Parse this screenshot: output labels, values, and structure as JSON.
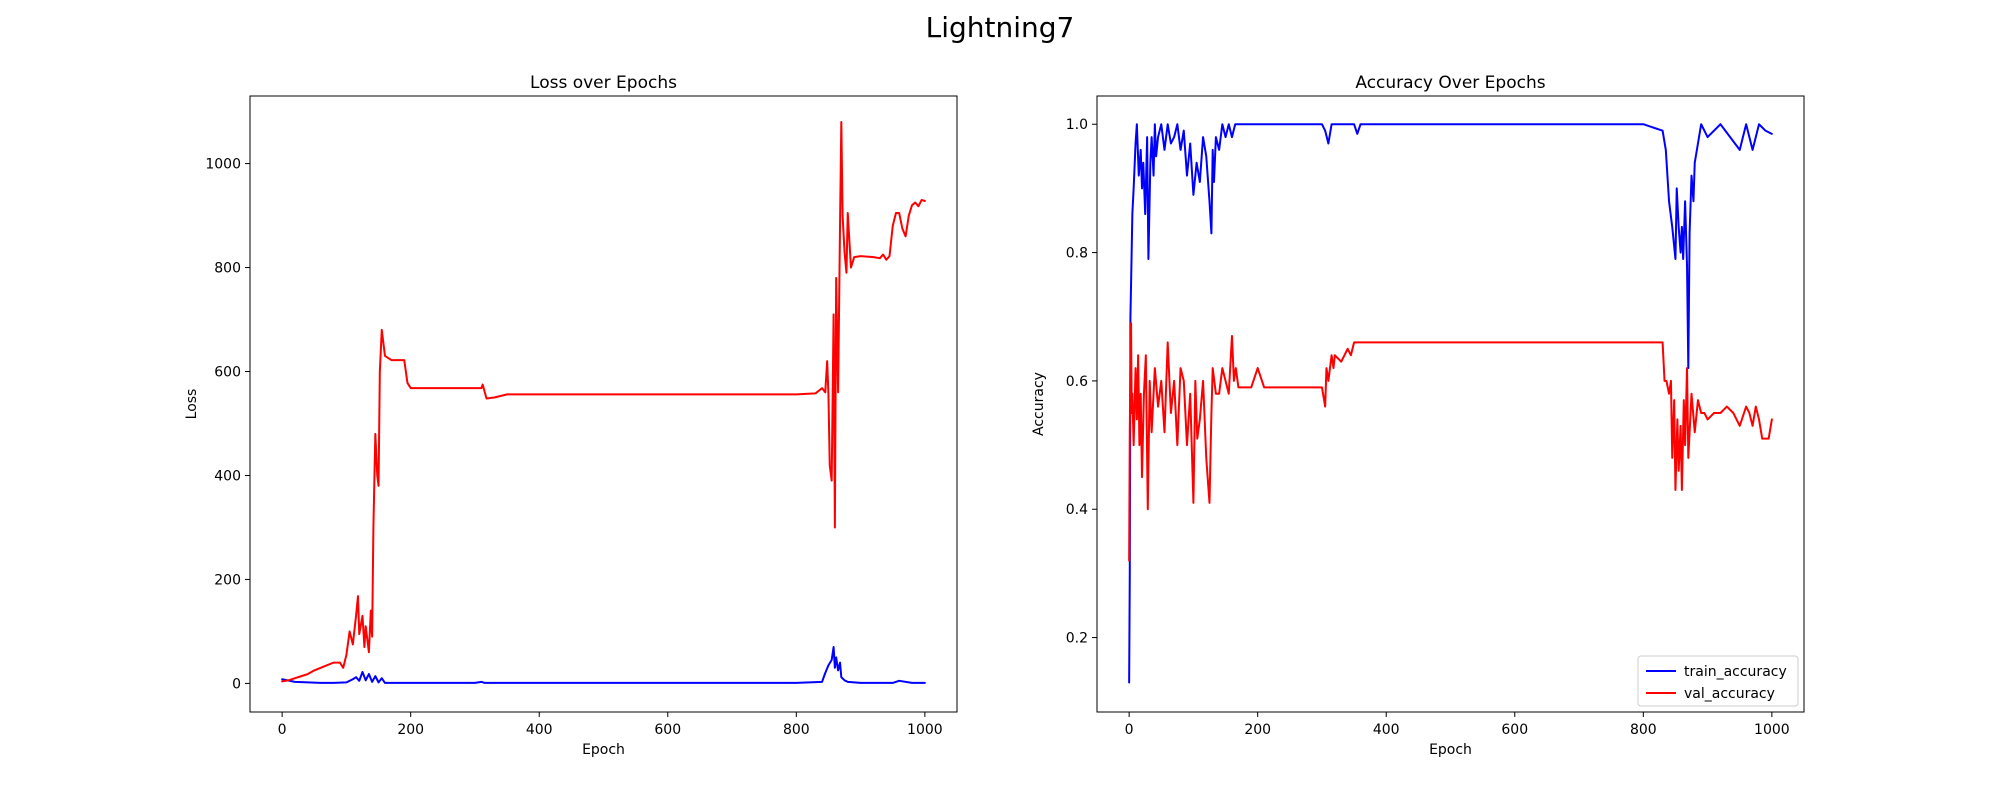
{
  "figure": {
    "suptitle": "Lightning7"
  },
  "chart_data": [
    {
      "type": "line",
      "title": "Loss over Epochs",
      "xlabel": "Epoch",
      "ylabel": "Loss",
      "xlim": [
        -50,
        1050
      ],
      "ylim": [
        -55,
        1130
      ],
      "xticks": [
        0,
        200,
        400,
        600,
        800,
        1000
      ],
      "yticks": [
        0,
        200,
        400,
        600,
        800,
        1000
      ],
      "grid": false,
      "legend": null,
      "series": [
        {
          "color": "#0000ff",
          "x": [
            0,
            20,
            40,
            60,
            80,
            100,
            110,
            115,
            120,
            125,
            130,
            135,
            140,
            145,
            150,
            155,
            160,
            200,
            300,
            310,
            315,
            400,
            600,
            800,
            840,
            845,
            850,
            855,
            858,
            860,
            862,
            865,
            868,
            870,
            875,
            880,
            900,
            950,
            960,
            980,
            1000
          ],
          "y": [
            8,
            3,
            2,
            1,
            1,
            2,
            8,
            12,
            5,
            22,
            6,
            18,
            3,
            14,
            2,
            10,
            1,
            1,
            1,
            3,
            1,
            1,
            1,
            1,
            3,
            20,
            35,
            45,
            70,
            30,
            50,
            25,
            40,
            12,
            6,
            3,
            1,
            1,
            5,
            1,
            1
          ]
        },
        {
          "color": "#ff0000",
          "x": [
            0,
            10,
            20,
            30,
            40,
            50,
            60,
            70,
            80,
            90,
            95,
            100,
            105,
            110,
            115,
            118,
            120,
            125,
            128,
            130,
            135,
            138,
            140,
            142,
            145,
            148,
            150,
            152,
            155,
            160,
            170,
            180,
            190,
            195,
            200,
            250,
            300,
            310,
            312,
            318,
            330,
            350,
            400,
            500,
            600,
            700,
            800,
            830,
            840,
            845,
            848,
            850,
            852,
            855,
            858,
            860,
            862,
            865,
            868,
            870,
            872,
            875,
            878,
            880,
            885,
            890,
            900,
            920,
            930,
            935,
            940,
            945,
            950,
            955,
            960,
            965,
            970,
            975,
            980,
            985,
            990,
            995,
            1000
          ],
          "y": [
            4,
            6,
            10,
            14,
            18,
            25,
            30,
            35,
            40,
            40,
            30,
            55,
            100,
            75,
            130,
            168,
            95,
            130,
            70,
            110,
            60,
            140,
            90,
            300,
            480,
            400,
            380,
            600,
            680,
            630,
            622,
            622,
            622,
            578,
            568,
            568,
            568,
            568,
            575,
            548,
            550,
            556,
            556,
            556,
            556,
            556,
            556,
            558,
            568,
            560,
            620,
            555,
            420,
            390,
            710,
            300,
            780,
            560,
            880,
            1080,
            900,
            830,
            790,
            905,
            800,
            820,
            822,
            820,
            818,
            825,
            815,
            822,
            880,
            905,
            905,
            875,
            860,
            900,
            920,
            925,
            918,
            930,
            928
          ]
        }
      ]
    },
    {
      "type": "line",
      "title": "Accuracy Over Epochs",
      "xlabel": "Epoch",
      "ylabel": "Accuracy",
      "xlim": [
        -50,
        1050
      ],
      "ylim": [
        0.084,
        1.044
      ],
      "xticks": [
        0,
        200,
        400,
        600,
        800,
        1000
      ],
      "yticks": [
        0.2,
        0.4,
        0.6,
        0.8,
        1.0
      ],
      "grid": false,
      "legend": "lower right",
      "series": [
        {
          "name": "train_accuracy",
          "color": "#0000ff",
          "x": [
            0,
            1,
            2,
            3,
            5,
            7,
            10,
            12,
            15,
            18,
            20,
            22,
            25,
            28,
            30,
            33,
            35,
            38,
            40,
            42,
            45,
            50,
            55,
            60,
            65,
            70,
            75,
            80,
            85,
            90,
            95,
            100,
            105,
            110,
            115,
            120,
            125,
            128,
            130,
            132,
            135,
            140,
            145,
            150,
            155,
            160,
            165,
            170,
            180,
            200,
            300,
            305,
            310,
            315,
            350,
            355,
            360,
            400,
            600,
            800,
            830,
            835,
            840,
            845,
            850,
            852,
            855,
            858,
            860,
            862,
            865,
            868,
            870,
            872,
            875,
            878,
            880,
            885,
            890,
            900,
            920,
            950,
            960,
            970,
            980,
            990,
            1000
          ],
          "y": [
            0.13,
            0.3,
            0.7,
            0.75,
            0.86,
            0.9,
            0.97,
            1.0,
            0.92,
            0.96,
            0.9,
            0.94,
            0.86,
            0.98,
            0.79,
            0.94,
            0.98,
            0.92,
            1.0,
            0.95,
            0.98,
            1.0,
            0.96,
            1.0,
            0.97,
            0.98,
            1.0,
            0.96,
            0.99,
            0.92,
            0.97,
            0.89,
            0.94,
            0.91,
            0.98,
            0.95,
            0.88,
            0.83,
            0.96,
            0.91,
            0.98,
            0.96,
            1.0,
            0.98,
            1.0,
            0.98,
            1.0,
            1.0,
            1.0,
            1.0,
            1.0,
            0.99,
            0.97,
            1.0,
            1.0,
            0.985,
            1.0,
            1.0,
            1.0,
            1.0,
            0.99,
            0.96,
            0.88,
            0.84,
            0.79,
            0.9,
            0.84,
            0.8,
            0.84,
            0.79,
            0.88,
            0.78,
            0.62,
            0.83,
            0.92,
            0.88,
            0.94,
            0.97,
            1.0,
            0.98,
            1.0,
            0.96,
            1.0,
            0.96,
            1.0,
            0.99,
            0.985
          ]
        },
        {
          "name": "val_accuracy",
          "color": "#ff0000",
          "x": [
            0,
            1,
            2,
            3,
            4,
            5,
            7,
            10,
            12,
            14,
            16,
            18,
            20,
            23,
            26,
            29,
            32,
            35,
            40,
            45,
            50,
            55,
            60,
            65,
            70,
            75,
            80,
            85,
            90,
            95,
            100,
            103,
            106,
            110,
            115,
            120,
            125,
            128,
            130,
            135,
            140,
            145,
            150,
            155,
            160,
            163,
            166,
            170,
            180,
            190,
            200,
            210,
            250,
            300,
            305,
            307,
            310,
            315,
            318,
            320,
            330,
            340,
            345,
            350,
            400,
            500,
            600,
            700,
            800,
            830,
            833,
            836,
            840,
            843,
            845,
            848,
            850,
            853,
            855,
            858,
            860,
            863,
            865,
            868,
            870,
            875,
            880,
            885,
            890,
            895,
            900,
            910,
            920,
            930,
            940,
            950,
            960,
            965,
            970,
            975,
            980,
            985,
            990,
            995,
            1000
          ],
          "y": [
            0.32,
            0.52,
            0.62,
            0.69,
            0.55,
            0.58,
            0.5,
            0.62,
            0.54,
            0.64,
            0.5,
            0.58,
            0.45,
            0.58,
            0.64,
            0.4,
            0.6,
            0.52,
            0.62,
            0.56,
            0.6,
            0.52,
            0.66,
            0.55,
            0.6,
            0.5,
            0.62,
            0.6,
            0.5,
            0.58,
            0.41,
            0.6,
            0.51,
            0.54,
            0.6,
            0.48,
            0.41,
            0.55,
            0.62,
            0.58,
            0.58,
            0.62,
            0.6,
            0.58,
            0.67,
            0.6,
            0.62,
            0.59,
            0.59,
            0.59,
            0.62,
            0.59,
            0.59,
            0.59,
            0.56,
            0.62,
            0.6,
            0.64,
            0.62,
            0.64,
            0.63,
            0.65,
            0.64,
            0.66,
            0.66,
            0.66,
            0.66,
            0.66,
            0.66,
            0.66,
            0.6,
            0.6,
            0.58,
            0.6,
            0.48,
            0.57,
            0.43,
            0.54,
            0.46,
            0.53,
            0.43,
            0.57,
            0.5,
            0.62,
            0.48,
            0.58,
            0.52,
            0.57,
            0.55,
            0.55,
            0.54,
            0.55,
            0.55,
            0.56,
            0.55,
            0.53,
            0.56,
            0.55,
            0.53,
            0.56,
            0.54,
            0.51,
            0.51,
            0.51,
            0.54
          ]
        }
      ]
    }
  ]
}
